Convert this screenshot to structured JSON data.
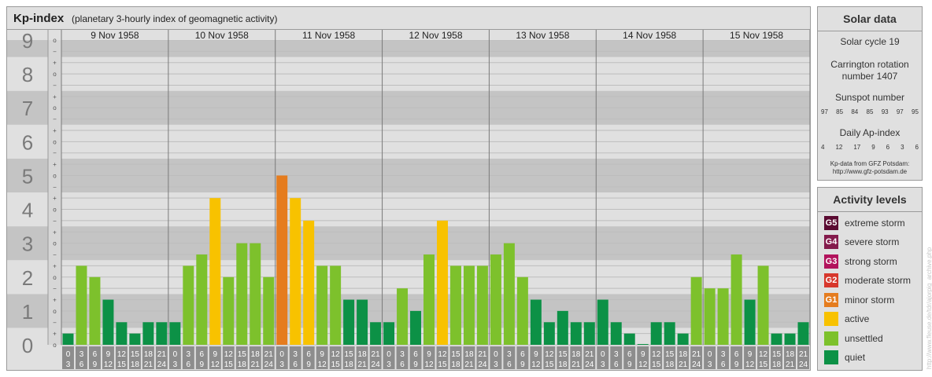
{
  "header": {
    "title": "Kp-index",
    "subtitle": "(planetary 3-hourly index of geomagnetic activity)"
  },
  "chart_data": {
    "type": "bar",
    "title": "Kp-index",
    "subtitle": "(planetary 3-hourly index of geomagnetic activity)",
    "days": [
      "9 Nov 1958",
      "10 Nov 1958",
      "11 Nov 1958",
      "12 Nov 1958",
      "13 Nov 1958",
      "14 Nov 1958",
      "15 Nov 1958"
    ],
    "interval_labels": [
      [
        "0",
        "3"
      ],
      [
        "3",
        "6"
      ],
      [
        "6",
        "9"
      ],
      [
        "9",
        "12"
      ],
      [
        "12",
        "15"
      ],
      [
        "15",
        "18"
      ],
      [
        "18",
        "21"
      ],
      [
        "21",
        "24"
      ]
    ],
    "y_ticks": [
      "0",
      "1",
      "2",
      "3",
      "4",
      "5",
      "6",
      "7",
      "8",
      "9"
    ],
    "minor_tick_symbols": [
      "o",
      "+",
      "−",
      "o",
      "+",
      "−",
      "o",
      "+",
      "−",
      "o",
      "+",
      "−",
      "o",
      "+",
      "−",
      "o",
      "+",
      "−",
      "o",
      "+",
      "−",
      "o",
      "+",
      "−",
      "o",
      "+",
      "−",
      "o"
    ],
    "ylim": [
      0,
      9
    ],
    "series": [
      {
        "values": [
          0.333,
          2.333,
          2,
          1.333,
          0.667,
          0.333,
          0.667,
          0.667,
          0.667,
          2.333,
          2.667,
          4.333,
          2,
          3,
          3,
          2,
          5,
          4.333,
          3.667,
          2.333,
          2.333,
          1.333,
          1.333,
          0.667,
          0.667,
          1.667,
          1,
          2.667,
          3.667,
          2.333,
          2.333,
          2.333,
          2.667,
          3,
          2,
          1.333,
          0.667,
          1,
          0.667,
          0.667,
          1.333,
          0.667,
          0.333,
          0,
          0.667,
          0.667,
          0.333,
          2,
          1.667,
          1.667,
          2.667,
          1.333,
          2.333,
          0.333,
          0.333,
          0.667
        ]
      }
    ],
    "colors": {
      "quiet": "#0c9146",
      "unsettled": "#7dc12c",
      "active": "#f8c200",
      "minor_storm": "#e57c1e",
      "moderate_storm": "#d7372c",
      "strong_storm": "#b2135c",
      "severe_storm": "#841b4c",
      "extreme_storm": "#5b0b32",
      "band_dark": "#c4c4c4",
      "band_light": "#e0e0e0",
      "label_cell": "#8d8d8d"
    }
  },
  "solar": {
    "heading": "Solar data",
    "cycle": "Solar cycle 19",
    "carrington_line1": "Carrington rotation",
    "carrington_line2": "number 1407",
    "sunspot_label": "Sunspot number",
    "sunspot_values": [
      "97",
      "85",
      "84",
      "85",
      "93",
      "97",
      "95"
    ],
    "ap_label": "Daily Ap-index",
    "ap_values": [
      "4",
      "12",
      "17",
      "9",
      "6",
      "3",
      "6"
    ],
    "source_line1": "Kp-data from GFZ Potsdam:",
    "source_line2": "http://www.gfz-potsdam.de"
  },
  "activity": {
    "heading": "Activity levels",
    "levels": [
      {
        "badge": "G5",
        "label": "extreme storm",
        "color": "#5b0b32"
      },
      {
        "badge": "G4",
        "label": "severe storm",
        "color": "#841b4c"
      },
      {
        "badge": "G3",
        "label": "strong storm",
        "color": "#b2135c"
      },
      {
        "badge": "G2",
        "label": "moderate storm",
        "color": "#d7372c"
      },
      {
        "badge": "G1",
        "label": "minor storm",
        "color": "#e57c1e"
      },
      {
        "badge": "",
        "label": "active",
        "color": "#f8c200"
      },
      {
        "badge": "",
        "label": "unsettled",
        "color": "#7dc12c"
      },
      {
        "badge": "",
        "label": "quiet",
        "color": "#0c9146"
      }
    ]
  },
  "watermark": "http://www.fleuse.de/tdr/ajorpig_archive.php"
}
